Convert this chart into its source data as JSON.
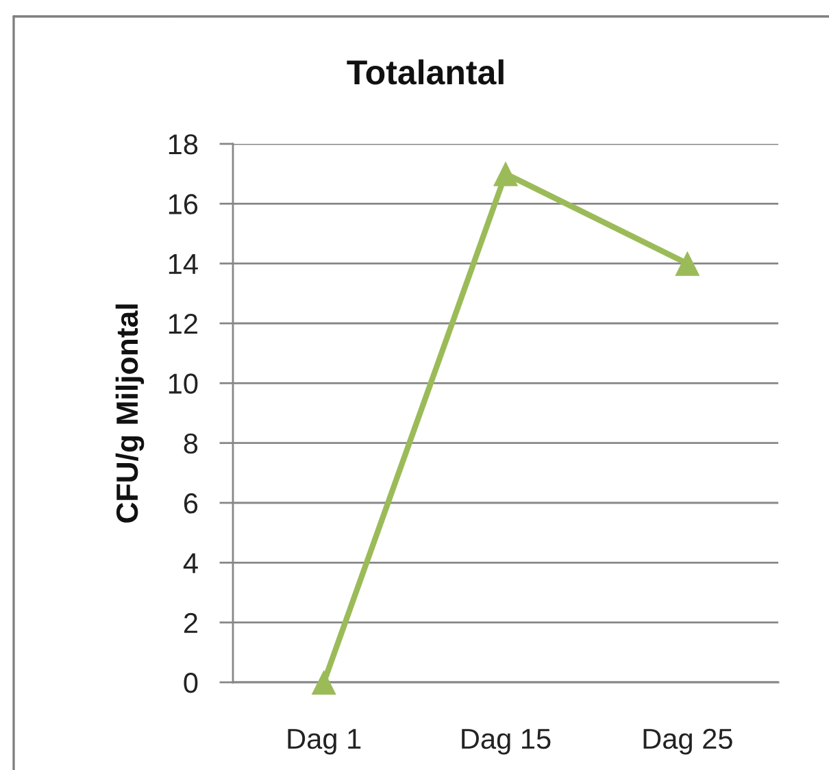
{
  "chart_data": {
    "type": "line",
    "title": "Totalantal",
    "ylabel": "CFU/g Miljontal",
    "categories": [
      "Dag 1",
      "Dag 15",
      "Dag 25"
    ],
    "series": [
      {
        "color": "#9bbb59",
        "values": [
          0,
          17,
          14
        ]
      }
    ],
    "ylim": [
      0,
      18
    ],
    "yticks": [
      0,
      2,
      4,
      6,
      8,
      10,
      12,
      14,
      16,
      18
    ],
    "grid": "y",
    "marker": "triangle",
    "line_style": "solid"
  }
}
